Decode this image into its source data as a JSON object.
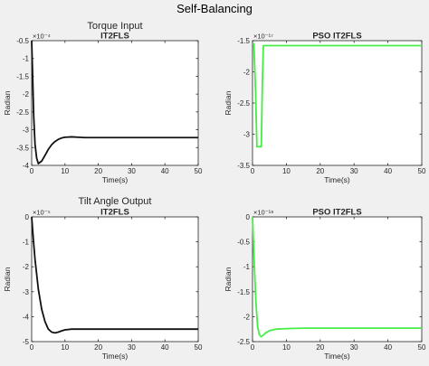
{
  "figure": {
    "title": "Self-Balancing",
    "row_titles": [
      "Torque Input",
      "Tilt Angle Output"
    ]
  },
  "chart_data": [
    {
      "type": "line",
      "title": "IT2FLS",
      "xlabel": "Time(s)",
      "ylabel": "Radian",
      "exponent": "×10⁻⁴",
      "xlim": [
        0,
        50
      ],
      "ylim": [
        -4,
        -0.5
      ],
      "xticks": [
        0,
        10,
        20,
        30,
        40,
        50
      ],
      "yticks": [
        -4,
        -3.5,
        -3,
        -2.5,
        -2,
        -1.5,
        -1,
        -0.5
      ],
      "grid": false,
      "series": [
        {
          "color": "#111111",
          "x": [
            0,
            0.3,
            0.6,
            1,
            1.5,
            2,
            3,
            4,
            5,
            6,
            7,
            8,
            9,
            10,
            12,
            14,
            16,
            20,
            30,
            40,
            50
          ],
          "y": [
            -0.5,
            -1.5,
            -2.6,
            -3.4,
            -3.8,
            -3.95,
            -3.88,
            -3.72,
            -3.55,
            -3.42,
            -3.33,
            -3.27,
            -3.23,
            -3.21,
            -3.2,
            -3.21,
            -3.22,
            -3.22,
            -3.22,
            -3.22,
            -3.22
          ]
        }
      ]
    },
    {
      "type": "line",
      "title": "PSO IT2FLS",
      "xlabel": "Time(s)",
      "ylabel": "Radian",
      "exponent": "×10⁻¹⁷",
      "xlim": [
        0,
        50
      ],
      "ylim": [
        -3.5,
        -1.5
      ],
      "xticks": [
        0,
        10,
        20,
        30,
        40,
        50
      ],
      "yticks": [
        -3.5,
        -3,
        -2.5,
        -2,
        -1.5
      ],
      "grid": false,
      "series": [
        {
          "color": "#44ee44",
          "x": [
            0,
            0.4,
            0.9,
            1.3,
            2.6,
            2.9,
            3.2,
            50
          ],
          "y": [
            -1.55,
            -1.55,
            -2.3,
            -3.2,
            -3.2,
            -2.2,
            -1.58,
            -1.58
          ]
        }
      ]
    },
    {
      "type": "line",
      "title": "IT2FLS",
      "xlabel": "Time(s)",
      "ylabel": "Radian",
      "exponent": "×10⁻⁵",
      "xlim": [
        0,
        50
      ],
      "ylim": [
        -5,
        0
      ],
      "xticks": [
        0,
        10,
        20,
        30,
        40,
        50
      ],
      "yticks": [
        -5,
        -4,
        -3,
        -2,
        -1,
        0
      ],
      "grid": false,
      "series": [
        {
          "color": "#111111",
          "x": [
            0,
            0.5,
            1,
            2,
            3,
            4,
            5,
            6,
            7,
            8,
            9,
            10,
            12,
            15,
            20,
            30,
            40,
            50
          ],
          "y": [
            0,
            -0.9,
            -1.7,
            -2.9,
            -3.7,
            -4.2,
            -4.5,
            -4.62,
            -4.65,
            -4.62,
            -4.57,
            -4.53,
            -4.5,
            -4.5,
            -4.5,
            -4.5,
            -4.5,
            -4.5
          ]
        }
      ]
    },
    {
      "type": "line",
      "title": "PSO IT2FLS",
      "xlabel": "Time(s)",
      "ylabel": "Radian",
      "exponent": "×10⁻¹⁸",
      "xlim": [
        0,
        50
      ],
      "ylim": [
        -2.5,
        0
      ],
      "xticks": [
        0,
        10,
        20,
        30,
        40,
        50
      ],
      "yticks": [
        -2.5,
        -2,
        -1.5,
        -1,
        -0.5,
        0
      ],
      "grid": false,
      "series": [
        {
          "color": "#44ee44",
          "x": [
            0,
            0.5,
            1,
            1.5,
            2,
            2.5,
            3,
            4,
            5,
            7,
            10,
            15,
            20,
            50
          ],
          "y": [
            0,
            -0.9,
            -1.7,
            -2.2,
            -2.36,
            -2.4,
            -2.38,
            -2.32,
            -2.28,
            -2.25,
            -2.24,
            -2.23,
            -2.23,
            -2.23
          ]
        }
      ]
    }
  ]
}
